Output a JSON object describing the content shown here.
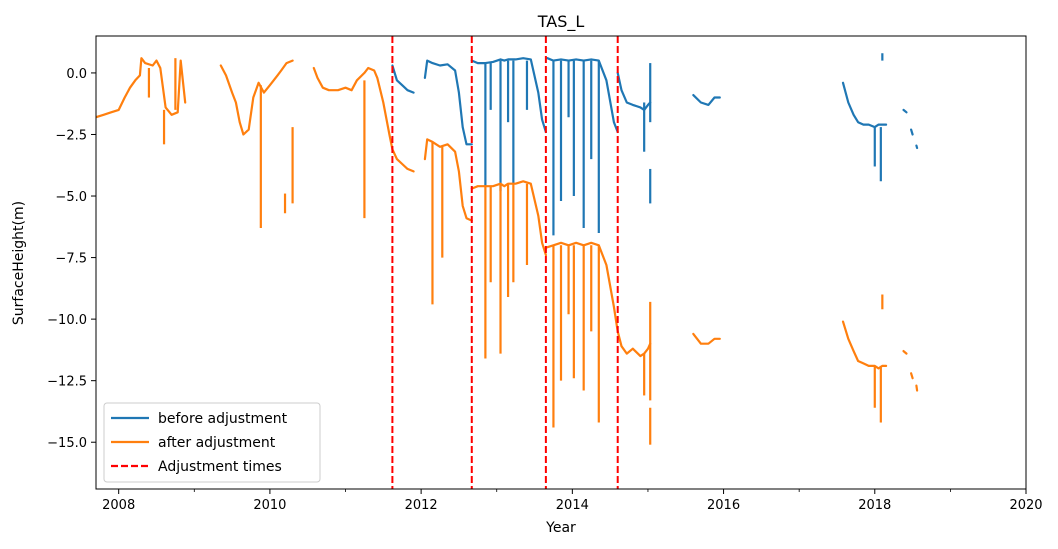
{
  "chart_data": {
    "type": "line",
    "title": "TAS_L",
    "xlabel": "Year",
    "ylabel": "SurfaceHeight(m)",
    "xlim": [
      2007.7,
      2020.0
    ],
    "ylim": [
      -16.9,
      1.5
    ],
    "x_ticks": [
      2008,
      2010,
      2012,
      2014,
      2016,
      2018,
      2020
    ],
    "x_tick_labels": [
      "2008",
      "2010",
      "2012",
      "2014",
      "2016",
      "2018",
      "2020"
    ],
    "y_ticks": [
      0.0,
      -2.5,
      -5.0,
      -7.5,
      -10.0,
      -12.5,
      -15.0
    ],
    "y_tick_labels": [
      "0.0",
      "−2.5",
      "−5.0",
      "−7.5",
      "−10.0",
      "−12.5",
      "−15.0"
    ],
    "grid": false,
    "legend_position": "lower-left",
    "adjustment_times": [
      2011.62,
      2012.67,
      2013.65,
      2014.6
    ],
    "series": [
      {
        "name": "before adjustment",
        "color": "#1f77b4",
        "segments": [
          [
            [
              2011.62,
              0.3
            ],
            [
              2011.68,
              -0.3
            ],
            [
              2011.75,
              -0.5
            ],
            [
              2011.82,
              -0.7
            ],
            [
              2011.9,
              -0.8
            ]
          ],
          [
            [
              2012.05,
              -0.2
            ],
            [
              2012.08,
              0.5
            ],
            [
              2012.15,
              0.4
            ],
            [
              2012.25,
              0.3
            ],
            [
              2012.35,
              0.35
            ],
            [
              2012.45,
              0.1
            ],
            [
              2012.5,
              -0.8
            ],
            [
              2012.55,
              -2.2
            ],
            [
              2012.6,
              -2.9
            ],
            [
              2012.67,
              -2.9
            ]
          ],
          [
            [
              2012.67,
              0.5
            ],
            [
              2012.75,
              0.4
            ],
            [
              2012.85,
              0.4
            ],
            [
              2012.95,
              0.45
            ],
            [
              2013.05,
              0.55
            ],
            [
              2013.1,
              0.5
            ],
            [
              2013.15,
              0.55
            ],
            [
              2013.25,
              0.55
            ],
            [
              2013.35,
              0.6
            ],
            [
              2013.45,
              0.55
            ],
            [
              2013.55,
              -0.8
            ],
            [
              2013.6,
              -1.9
            ],
            [
              2013.65,
              -2.4
            ]
          ],
          [
            [
              2013.67,
              0.6
            ],
            [
              2013.75,
              0.5
            ],
            [
              2013.85,
              0.55
            ],
            [
              2013.95,
              0.5
            ],
            [
              2014.05,
              0.55
            ],
            [
              2014.15,
              0.5
            ],
            [
              2014.25,
              0.55
            ],
            [
              2014.35,
              0.5
            ],
            [
              2014.45,
              -0.3
            ],
            [
              2014.55,
              -2.0
            ],
            [
              2014.6,
              -2.4
            ]
          ],
          [
            [
              2014.6,
              0.0
            ],
            [
              2014.65,
              -0.7
            ],
            [
              2014.72,
              -1.2
            ],
            [
              2014.8,
              -1.3
            ],
            [
              2014.9,
              -1.4
            ],
            [
              2014.95,
              -1.5
            ],
            [
              2015.0,
              -1.3
            ],
            [
              2015.03,
              -1.2
            ]
          ],
          [
            [
              2015.6,
              -0.9
            ],
            [
              2015.7,
              -1.2
            ],
            [
              2015.8,
              -1.3
            ],
            [
              2015.88,
              -1.0
            ],
            [
              2015.95,
              -1.0
            ]
          ],
          [
            [
              2017.58,
              -0.4
            ],
            [
              2017.65,
              -1.2
            ],
            [
              2017.72,
              -1.7
            ],
            [
              2017.78,
              -2.0
            ],
            [
              2017.85,
              -2.1
            ],
            [
              2017.92,
              -2.1
            ],
            [
              2018.0,
              -2.2
            ],
            [
              2018.05,
              -2.1
            ],
            [
              2018.1,
              -2.1
            ],
            [
              2018.15,
              -2.1
            ]
          ],
          [
            [
              2018.38,
              -1.5
            ],
            [
              2018.42,
              -1.6
            ]
          ],
          [
            [
              2018.48,
              -2.3
            ],
            [
              2018.5,
              -2.5
            ]
          ],
          [
            [
              2018.55,
              -2.95
            ],
            [
              2018.56,
              -3.05
            ]
          ]
        ],
        "spikes": [
          [
            2012.85,
            0.4,
            -4.6
          ],
          [
            2012.92,
            0.4,
            -1.5
          ],
          [
            2013.05,
            0.5,
            -4.8
          ],
          [
            2013.15,
            0.5,
            -2.0
          ],
          [
            2013.22,
            0.5,
            -4.5
          ],
          [
            2013.4,
            0.5,
            -1.5
          ],
          [
            2013.75,
            0.5,
            -6.6
          ],
          [
            2013.85,
            0.5,
            -5.2
          ],
          [
            2013.95,
            0.5,
            -1.8
          ],
          [
            2014.02,
            0.5,
            -5.0
          ],
          [
            2014.15,
            0.5,
            -6.3
          ],
          [
            2014.25,
            0.5,
            -3.5
          ],
          [
            2014.35,
            0.5,
            -6.5
          ],
          [
            2014.95,
            -1.2,
            -3.2
          ],
          [
            2015.03,
            0.4,
            -2.0
          ],
          [
            2015.03,
            -3.9,
            -5.3
          ],
          [
            2018.0,
            -2.2,
            -3.8
          ],
          [
            2018.08,
            -2.2,
            -4.4
          ],
          [
            2018.1,
            0.5,
            0.8
          ]
        ]
      },
      {
        "name": "after adjustment",
        "color": "#ff7f0e",
        "segments": [
          [
            [
              2007.7,
              -1.8
            ],
            [
              2007.8,
              -1.7
            ],
            [
              2007.9,
              -1.6
            ],
            [
              2008.0,
              -1.5
            ],
            [
              2008.08,
              -1.0
            ],
            [
              2008.15,
              -0.6
            ],
            [
              2008.22,
              -0.3
            ],
            [
              2008.28,
              -0.1
            ],
            [
              2008.3,
              0.6
            ],
            [
              2008.35,
              0.4
            ],
            [
              2008.45,
              0.3
            ],
            [
              2008.5,
              0.5
            ],
            [
              2008.55,
              0.2
            ],
            [
              2008.62,
              -1.4
            ],
            [
              2008.7,
              -1.7
            ],
            [
              2008.78,
              -1.6
            ],
            [
              2008.82,
              0.5
            ],
            [
              2008.88,
              -1.2
            ]
          ],
          [
            [
              2009.35,
              0.3
            ],
            [
              2009.42,
              -0.1
            ],
            [
              2009.5,
              -0.8
            ],
            [
              2009.55,
              -1.2
            ],
            [
              2009.6,
              -2.0
            ],
            [
              2009.65,
              -2.5
            ],
            [
              2009.72,
              -2.3
            ],
            [
              2009.78,
              -1.0
            ],
            [
              2009.85,
              -0.4
            ],
            [
              2009.92,
              -0.8
            ],
            [
              2010.0,
              -0.5
            ],
            [
              2010.05,
              -0.3
            ],
            [
              2010.1,
              -0.1
            ],
            [
              2010.15,
              0.1
            ],
            [
              2010.22,
              0.4
            ],
            [
              2010.3,
              0.5
            ]
          ],
          [
            [
              2010.58,
              0.2
            ],
            [
              2010.63,
              -0.2
            ],
            [
              2010.7,
              -0.6
            ],
            [
              2010.78,
              -0.7
            ],
            [
              2010.9,
              -0.7
            ],
            [
              2011.0,
              -0.6
            ],
            [
              2011.08,
              -0.7
            ],
            [
              2011.15,
              -0.3
            ],
            [
              2011.25,
              0.0
            ],
            [
              2011.3,
              0.2
            ],
            [
              2011.38,
              0.1
            ],
            [
              2011.42,
              -0.2
            ],
            [
              2011.5,
              -1.2
            ],
            [
              2011.58,
              -2.5
            ],
            [
              2011.62,
              -3.1
            ]
          ],
          [
            [
              2011.62,
              -3.1
            ],
            [
              2011.68,
              -3.5
            ],
            [
              2011.75,
              -3.7
            ],
            [
              2011.82,
              -3.9
            ],
            [
              2011.9,
              -4.0
            ]
          ],
          [
            [
              2012.05,
              -3.5
            ],
            [
              2012.08,
              -2.7
            ],
            [
              2012.15,
              -2.8
            ],
            [
              2012.25,
              -3.0
            ],
            [
              2012.35,
              -2.9
            ],
            [
              2012.45,
              -3.2
            ],
            [
              2012.5,
              -4.0
            ],
            [
              2012.55,
              -5.4
            ],
            [
              2012.6,
              -5.9
            ],
            [
              2012.67,
              -6.0
            ]
          ],
          [
            [
              2012.67,
              -4.7
            ],
            [
              2012.75,
              -4.6
            ],
            [
              2012.85,
              -4.6
            ],
            [
              2012.95,
              -4.6
            ],
            [
              2013.05,
              -4.5
            ],
            [
              2013.1,
              -4.6
            ],
            [
              2013.15,
              -4.5
            ],
            [
              2013.25,
              -4.5
            ],
            [
              2013.35,
              -4.4
            ],
            [
              2013.45,
              -4.5
            ],
            [
              2013.55,
              -5.8
            ],
            [
              2013.6,
              -6.9
            ],
            [
              2013.65,
              -7.4
            ]
          ],
          [
            [
              2013.65,
              -7.1
            ],
            [
              2013.75,
              -7.0
            ],
            [
              2013.85,
              -6.9
            ],
            [
              2013.95,
              -7.0
            ],
            [
              2014.05,
              -6.9
            ],
            [
              2014.15,
              -7.0
            ],
            [
              2014.25,
              -6.9
            ],
            [
              2014.35,
              -7.0
            ],
            [
              2014.45,
              -7.8
            ],
            [
              2014.55,
              -9.5
            ],
            [
              2014.6,
              -10.5
            ],
            [
              2014.65,
              -11.1
            ],
            [
              2014.72,
              -11.4
            ],
            [
              2014.8,
              -11.2
            ],
            [
              2014.9,
              -11.5
            ],
            [
              2014.95,
              -11.4
            ],
            [
              2015.0,
              -11.2
            ],
            [
              2015.03,
              -11.0
            ]
          ],
          [
            [
              2015.6,
              -10.6
            ],
            [
              2015.7,
              -11.0
            ],
            [
              2015.8,
              -11.0
            ],
            [
              2015.88,
              -10.8
            ],
            [
              2015.95,
              -10.8
            ]
          ],
          [
            [
              2017.58,
              -10.1
            ],
            [
              2017.65,
              -10.8
            ],
            [
              2017.72,
              -11.3
            ],
            [
              2017.78,
              -11.7
            ],
            [
              2017.85,
              -11.8
            ],
            [
              2017.92,
              -11.9
            ],
            [
              2018.0,
              -11.9
            ],
            [
              2018.05,
              -12.0
            ],
            [
              2018.1,
              -11.9
            ],
            [
              2018.15,
              -11.9
            ]
          ],
          [
            [
              2018.38,
              -11.3
            ],
            [
              2018.42,
              -11.4
            ]
          ],
          [
            [
              2018.48,
              -12.2
            ],
            [
              2018.5,
              -12.4
            ]
          ],
          [
            [
              2018.55,
              -12.7
            ],
            [
              2018.56,
              -12.9
            ]
          ]
        ],
        "spikes": [
          [
            2008.4,
            0.2,
            -1.0
          ],
          [
            2008.6,
            -1.5,
            -2.9
          ],
          [
            2008.75,
            -1.5,
            0.6
          ],
          [
            2009.88,
            -0.5,
            -6.3
          ],
          [
            2010.2,
            -4.9,
            -5.7
          ],
          [
            2010.3,
            -2.2,
            -5.3
          ],
          [
            2011.25,
            -0.3,
            -5.9
          ],
          [
            2012.15,
            -2.8,
            -9.4
          ],
          [
            2012.28,
            -3.0,
            -7.5
          ],
          [
            2012.85,
            -4.6,
            -11.6
          ],
          [
            2012.92,
            -4.6,
            -8.5
          ],
          [
            2013.05,
            -4.5,
            -11.4
          ],
          [
            2013.15,
            -4.5,
            -9.1
          ],
          [
            2013.22,
            -4.5,
            -8.5
          ],
          [
            2013.4,
            -4.5,
            -7.8
          ],
          [
            2013.75,
            -7.0,
            -14.4
          ],
          [
            2013.85,
            -7.0,
            -12.5
          ],
          [
            2013.95,
            -7.0,
            -9.8
          ],
          [
            2014.02,
            -7.0,
            -12.4
          ],
          [
            2014.15,
            -7.0,
            -12.9
          ],
          [
            2014.25,
            -7.0,
            -10.5
          ],
          [
            2014.35,
            -7.0,
            -14.2
          ],
          [
            2014.95,
            -11.4,
            -13.1
          ],
          [
            2015.03,
            -9.3,
            -13.3
          ],
          [
            2015.03,
            -13.6,
            -15.1
          ],
          [
            2018.0,
            -11.9,
            -13.6
          ],
          [
            2018.08,
            -11.9,
            -14.2
          ],
          [
            2018.1,
            -9.6,
            -9.0
          ]
        ]
      },
      {
        "name": "Adjustment times",
        "color": "#ff0000",
        "style": "dashed"
      }
    ]
  }
}
